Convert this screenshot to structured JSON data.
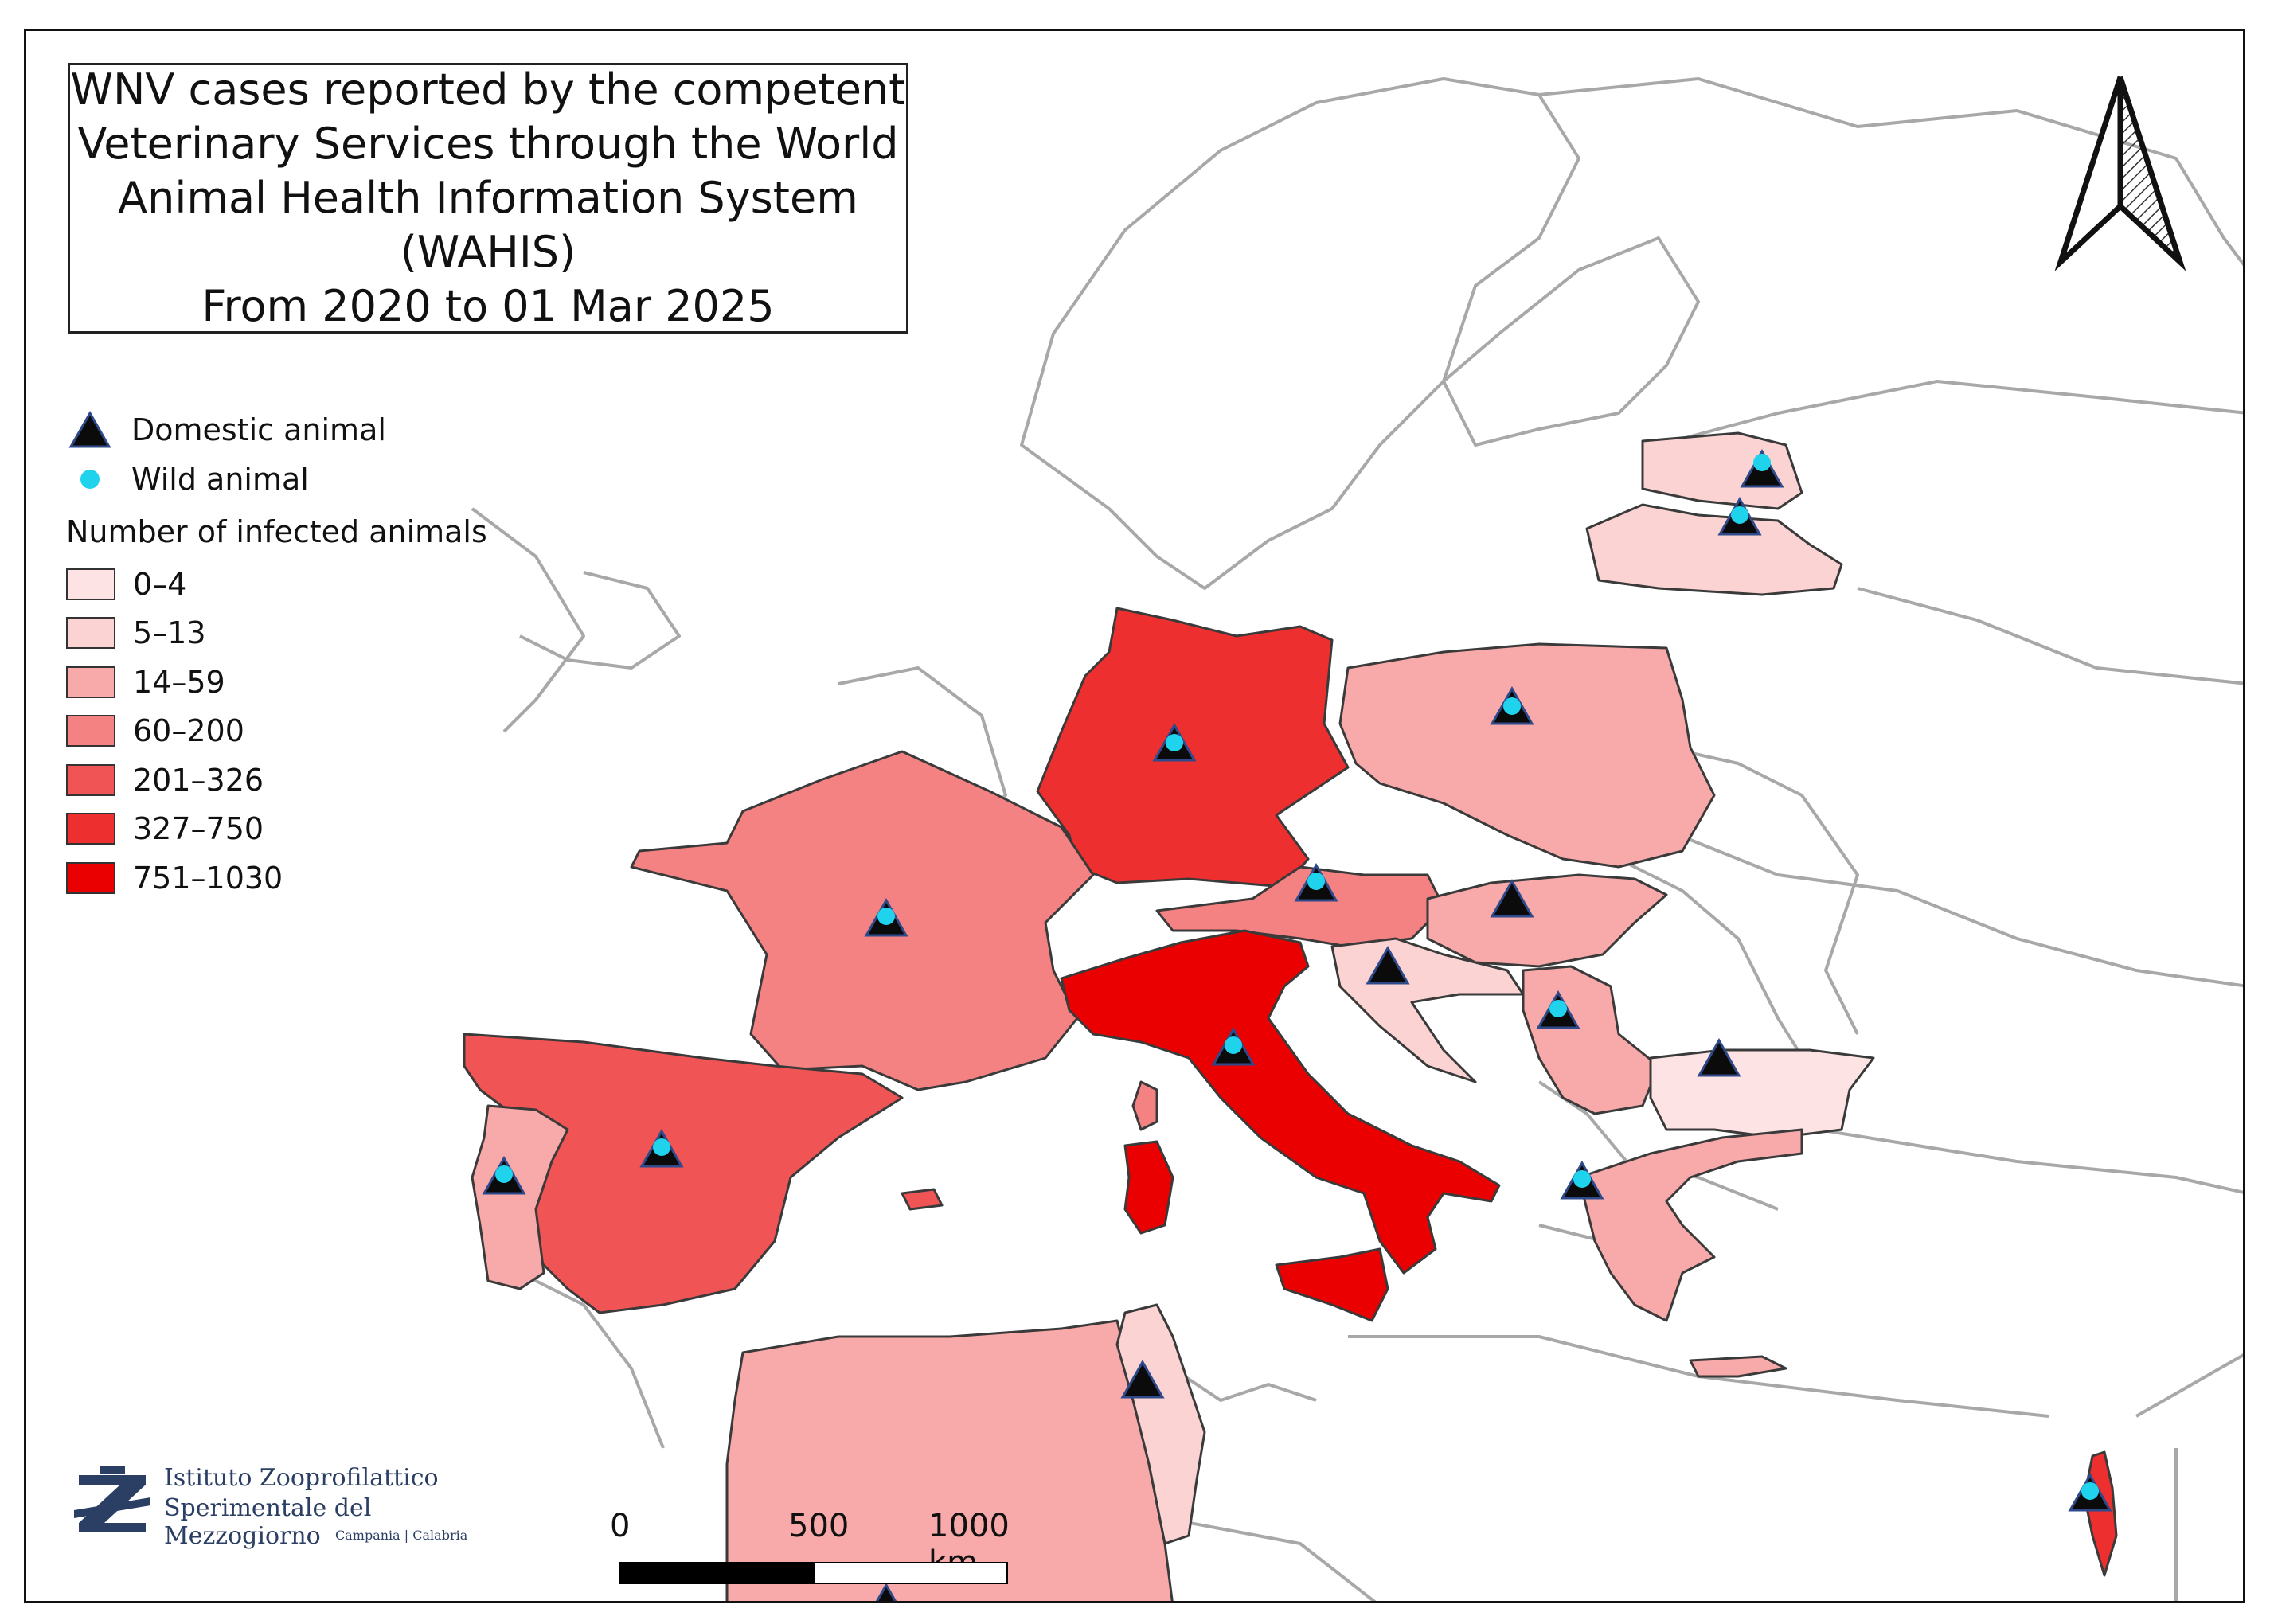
{
  "title": {
    "lines": [
      "WNV cases reported by the competent",
      "Veterinary Services through the World",
      "Animal Health Information System",
      "(WAHIS)",
      "From 2020 to 01 Mar 2025"
    ]
  },
  "legend": {
    "domestic_label": "Domestic animal",
    "wild_label": "Wild animal",
    "heading": "Number of infected animals",
    "classes": [
      {
        "label": "0–4",
        "color": "#fde3e3"
      },
      {
        "label": "5–13",
        "color": "#fbd3d3"
      },
      {
        "label": "14–59",
        "color": "#f8a9a9"
      },
      {
        "label": "60–200",
        "color": "#f58282"
      },
      {
        "label": "201–326",
        "color": "#f15454"
      },
      {
        "label": "327–750",
        "color": "#ee2f2f"
      },
      {
        "label": "751–1030",
        "color": "#ea0000"
      }
    ]
  },
  "colors": {
    "domestic_marker": "#0b0b0b",
    "wild_marker": "#1fd3ec",
    "outline": "#9a9a9a",
    "marker_edge": "#2f4a8a"
  },
  "scale": {
    "labels": [
      "0",
      "500",
      "1000 km"
    ]
  },
  "logo": {
    "line1": "Istituto Zooprofilattico",
    "line2": "Sperimentale del Mezzogiorno",
    "line3": "Campania | Calabria"
  },
  "north_arrow_icon": "north-arrow-icon"
}
